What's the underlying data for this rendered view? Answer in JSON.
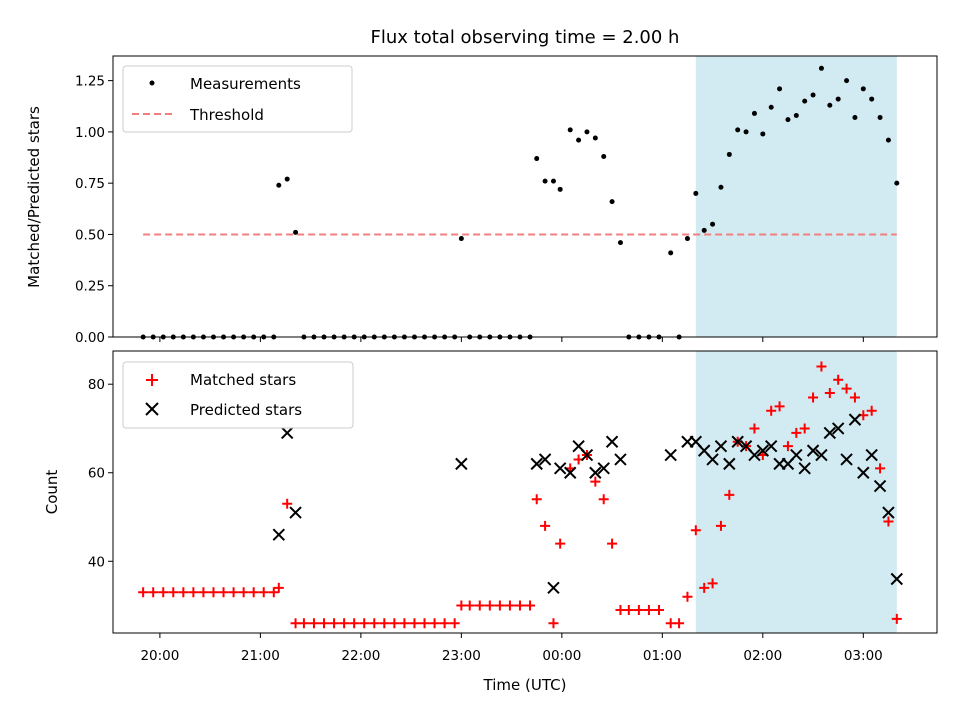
{
  "chart_data": [
    {
      "type": "scatter",
      "title": "Flux total observing time = 2.00 h",
      "xlabel": "",
      "ylabel": "Matched/Predicted stars",
      "ylim": [
        0,
        1.37
      ],
      "xlim": [
        "19:32",
        "03:44"
      ],
      "yticks": [
        0.0,
        0.25,
        0.5,
        0.75,
        1.0,
        1.25
      ],
      "ytick_labels": [
        "0.00",
        "0.25",
        "0.50",
        "0.75",
        "1.00",
        "1.25"
      ],
      "legend_position": "top-left",
      "highlight_span": {
        "from": "01:20",
        "to": "03:20",
        "color": "#add8e6"
      },
      "threshold": {
        "name": "Threshold",
        "value": 0.5,
        "from": "19:50",
        "to": "03:20",
        "color": "#f08080",
        "style": "dashed"
      },
      "series": [
        {
          "name": "Measurements",
          "marker": "dot",
          "color": "#000000",
          "points": [
            [
              "19:50",
              0
            ],
            [
              "19:56",
              0
            ],
            [
              "20:02",
              0
            ],
            [
              "20:08",
              0
            ],
            [
              "20:14",
              0
            ],
            [
              "20:20",
              0
            ],
            [
              "20:26",
              0
            ],
            [
              "20:32",
              0
            ],
            [
              "20:38",
              0
            ],
            [
              "20:44",
              0
            ],
            [
              "20:50",
              0
            ],
            [
              "20:56",
              0
            ],
            [
              "21:02",
              0
            ],
            [
              "21:08",
              0
            ],
            [
              "21:11",
              0.74
            ],
            [
              "21:16",
              0.77
            ],
            [
              "21:21",
              0.51
            ],
            [
              "21:26",
              0
            ],
            [
              "21:32",
              0
            ],
            [
              "21:38",
              0
            ],
            [
              "21:44",
              0
            ],
            [
              "21:50",
              0
            ],
            [
              "21:56",
              0
            ],
            [
              "22:02",
              0
            ],
            [
              "22:08",
              0
            ],
            [
              "22:14",
              0
            ],
            [
              "22:20",
              0
            ],
            [
              "22:26",
              0
            ],
            [
              "22:32",
              0
            ],
            [
              "22:38",
              0
            ],
            [
              "22:44",
              0
            ],
            [
              "22:50",
              0
            ],
            [
              "22:56",
              0
            ],
            [
              "23:00",
              0.48
            ],
            [
              "23:05",
              0
            ],
            [
              "23:11",
              0
            ],
            [
              "23:17",
              0
            ],
            [
              "23:23",
              0
            ],
            [
              "23:29",
              0
            ],
            [
              "23:35",
              0
            ],
            [
              "23:41",
              0
            ],
            [
              "23:45",
              0.87
            ],
            [
              "23:50",
              0.76
            ],
            [
              "23:55",
              0.76
            ],
            [
              "23:59",
              0.72
            ],
            [
              "00:05",
              1.01
            ],
            [
              "00:10",
              0.96
            ],
            [
              "00:15",
              1.0
            ],
            [
              "00:20",
              0.97
            ],
            [
              "00:25",
              0.88
            ],
            [
              "00:30",
              0.66
            ],
            [
              "00:35",
              0.46
            ],
            [
              "00:40",
              0
            ],
            [
              "00:46",
              0
            ],
            [
              "00:52",
              0
            ],
            [
              "00:58",
              0
            ],
            [
              "01:05",
              0.41
            ],
            [
              "01:10",
              0
            ],
            [
              "01:15",
              0.48
            ],
            [
              "01:20",
              0.7
            ],
            [
              "01:25",
              0.52
            ],
            [
              "01:30",
              0.55
            ],
            [
              "01:35",
              0.73
            ],
            [
              "01:40",
              0.89
            ],
            [
              "01:45",
              1.01
            ],
            [
              "01:50",
              1.0
            ],
            [
              "01:55",
              1.09
            ],
            [
              "02:00",
              0.99
            ],
            [
              "02:05",
              1.12
            ],
            [
              "02:10",
              1.21
            ],
            [
              "02:15",
              1.06
            ],
            [
              "02:20",
              1.08
            ],
            [
              "02:25",
              1.15
            ],
            [
              "02:30",
              1.18
            ],
            [
              "02:35",
              1.31
            ],
            [
              "02:40",
              1.13
            ],
            [
              "02:45",
              1.16
            ],
            [
              "02:50",
              1.25
            ],
            [
              "02:55",
              1.07
            ],
            [
              "03:00",
              1.21
            ],
            [
              "03:05",
              1.16
            ],
            [
              "03:10",
              1.07
            ],
            [
              "03:15",
              0.96
            ],
            [
              "03:20",
              0.75
            ]
          ]
        }
      ]
    },
    {
      "type": "scatter",
      "title": "",
      "xlabel": "Time (UTC)",
      "ylabel": "Count",
      "ylim": [
        23.8,
        87.5
      ],
      "xlim": [
        "19:32",
        "03:44"
      ],
      "yticks": [
        40,
        60,
        80
      ],
      "ytick_labels": [
        "40",
        "60",
        "80"
      ],
      "xtick_labels": [
        "20:00",
        "21:00",
        "22:00",
        "23:00",
        "00:00",
        "01:00",
        "02:00",
        "03:00"
      ],
      "legend_position": "top-left",
      "highlight_span": {
        "from": "01:20",
        "to": "03:20",
        "color": "#add8e6"
      },
      "series": [
        {
          "name": "Matched stars",
          "marker": "plus",
          "color": "#ff0000",
          "points": [
            [
              "19:50",
              33
            ],
            [
              "19:56",
              33
            ],
            [
              "20:02",
              33
            ],
            [
              "20:08",
              33
            ],
            [
              "20:14",
              33
            ],
            [
              "20:20",
              33
            ],
            [
              "20:26",
              33
            ],
            [
              "20:32",
              33
            ],
            [
              "20:38",
              33
            ],
            [
              "20:44",
              33
            ],
            [
              "20:50",
              33
            ],
            [
              "20:56",
              33
            ],
            [
              "21:02",
              33
            ],
            [
              "21:08",
              33
            ],
            [
              "21:11",
              34
            ],
            [
              "21:16",
              53
            ],
            [
              "21:21",
              26
            ],
            [
              "21:26",
              26
            ],
            [
              "21:32",
              26
            ],
            [
              "21:38",
              26
            ],
            [
              "21:44",
              26
            ],
            [
              "21:50",
              26
            ],
            [
              "21:56",
              26
            ],
            [
              "22:02",
              26
            ],
            [
              "22:08",
              26
            ],
            [
              "22:14",
              26
            ],
            [
              "22:20",
              26
            ],
            [
              "22:26",
              26
            ],
            [
              "22:32",
              26
            ],
            [
              "22:38",
              26
            ],
            [
              "22:44",
              26
            ],
            [
              "22:50",
              26
            ],
            [
              "22:56",
              26
            ],
            [
              "23:00",
              30
            ],
            [
              "23:05",
              30
            ],
            [
              "23:11",
              30
            ],
            [
              "23:17",
              30
            ],
            [
              "23:23",
              30
            ],
            [
              "23:29",
              30
            ],
            [
              "23:35",
              30
            ],
            [
              "23:41",
              30
            ],
            [
              "23:45",
              54
            ],
            [
              "23:50",
              48
            ],
            [
              "23:55",
              26
            ],
            [
              "23:59",
              44
            ],
            [
              "00:05",
              61
            ],
            [
              "00:10",
              63
            ],
            [
              "00:15",
              64
            ],
            [
              "00:20",
              58
            ],
            [
              "00:25",
              54
            ],
            [
              "00:30",
              44
            ],
            [
              "00:35",
              29
            ],
            [
              "00:40",
              29
            ],
            [
              "00:46",
              29
            ],
            [
              "00:52",
              29
            ],
            [
              "00:58",
              29
            ],
            [
              "01:05",
              26
            ],
            [
              "01:10",
              26
            ],
            [
              "01:15",
              32
            ],
            [
              "01:20",
              47
            ],
            [
              "01:25",
              34
            ],
            [
              "01:30",
              35
            ],
            [
              "01:35",
              48
            ],
            [
              "01:40",
              55
            ],
            [
              "01:45",
              67
            ],
            [
              "01:50",
              66
            ],
            [
              "01:55",
              70
            ],
            [
              "02:00",
              64
            ],
            [
              "02:05",
              74
            ],
            [
              "02:10",
              75
            ],
            [
              "02:15",
              66
            ],
            [
              "02:20",
              69
            ],
            [
              "02:25",
              70
            ],
            [
              "02:30",
              77
            ],
            [
              "02:35",
              84
            ],
            [
              "02:40",
              78
            ],
            [
              "02:45",
              81
            ],
            [
              "02:50",
              79
            ],
            [
              "02:55",
              77
            ],
            [
              "03:00",
              73
            ],
            [
              "03:05",
              74
            ],
            [
              "03:10",
              61
            ],
            [
              "03:15",
              49
            ],
            [
              "03:20",
              27
            ]
          ]
        },
        {
          "name": "Predicted stars",
          "marker": "x",
          "color": "#000000",
          "points": [
            [
              "21:11",
              46
            ],
            [
              "21:16",
              69
            ],
            [
              "21:21",
              51
            ],
            [
              "23:00",
              62
            ],
            [
              "23:45",
              62
            ],
            [
              "23:50",
              63
            ],
            [
              "23:55",
              34
            ],
            [
              "23:59",
              61
            ],
            [
              "00:05",
              60
            ],
            [
              "00:10",
              66
            ],
            [
              "00:15",
              64
            ],
            [
              "00:20",
              60
            ],
            [
              "00:25",
              61
            ],
            [
              "00:30",
              67
            ],
            [
              "00:35",
              63
            ],
            [
              "01:05",
              64
            ],
            [
              "01:15",
              67
            ],
            [
              "01:20",
              67
            ],
            [
              "01:25",
              65
            ],
            [
              "01:30",
              63
            ],
            [
              "01:35",
              66
            ],
            [
              "01:40",
              62
            ],
            [
              "01:45",
              67
            ],
            [
              "01:50",
              66
            ],
            [
              "01:55",
              64
            ],
            [
              "02:00",
              65
            ],
            [
              "02:05",
              66
            ],
            [
              "02:10",
              62
            ],
            [
              "02:15",
              62
            ],
            [
              "02:20",
              64
            ],
            [
              "02:25",
              61
            ],
            [
              "02:30",
              65
            ],
            [
              "02:35",
              64
            ],
            [
              "02:40",
              69
            ],
            [
              "02:45",
              70
            ],
            [
              "02:50",
              63
            ],
            [
              "02:55",
              72
            ],
            [
              "03:00",
              60
            ],
            [
              "03:05",
              64
            ],
            [
              "03:10",
              57
            ],
            [
              "03:15",
              51
            ],
            [
              "03:20",
              36
            ]
          ]
        }
      ]
    }
  ]
}
